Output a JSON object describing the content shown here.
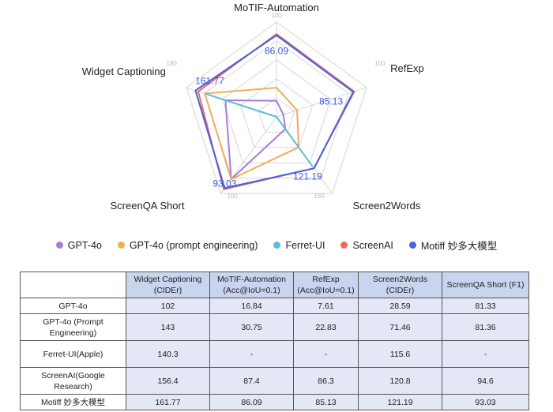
{
  "chart_data": {
    "type": "radar",
    "axes": [
      {
        "label": "MoTIF-Automation",
        "max": 100
      },
      {
        "label": "RefExp",
        "max": 100
      },
      {
        "label": "Screen2Words",
        "max": 180
      },
      {
        "label": "ScreenQA Short",
        "max": 100
      },
      {
        "label": "Widget Captioning",
        "max": 180
      }
    ],
    "series": [
      {
        "name": "GPT-4o",
        "color": "#a77bdc",
        "values": [
          16.84,
          7.61,
          28.59,
          81.33,
          102
        ]
      },
      {
        "name": "GPT-4o (prompt engineering)",
        "color": "#f0ad5a",
        "values": [
          30.75,
          22.83,
          71.46,
          81.36,
          143
        ]
      },
      {
        "name": "Ferret-UI",
        "color": "#5bbcd6",
        "values": [
          0,
          0,
          115.6,
          0,
          140.3
        ]
      },
      {
        "name": "ScreenAI",
        "color": "#ec6a5e",
        "values": [
          87.4,
          86.3,
          120.8,
          94.6,
          156.4
        ]
      },
      {
        "name": "Motiff 妙多大模型",
        "color": "#4662e0",
        "values": [
          86.09,
          85.13,
          121.19,
          93.03,
          161.77
        ]
      }
    ],
    "value_labels": [
      "86.09",
      "85.13",
      "121.19",
      "93.03",
      "161.77"
    ],
    "grid_color": "#d6d6d6",
    "legend_position": "bottom"
  },
  "table": {
    "headers": [
      "",
      "Widget Captioning (CIDEr)",
      "MoTIF-Automation (Acc@IoU=0.1)",
      "RefExp (Acc@IoU=0.1)",
      "Screen2Words (CIDEr)",
      "ScreenQA Short (F1)"
    ],
    "rows": [
      {
        "name": "GPT-4o",
        "cells": [
          "102",
          "16.84",
          "7.61",
          "28.59",
          "81.33"
        ]
      },
      {
        "name": "GPT-4o (Prompt Engineering)",
        "cells": [
          "143",
          "30.75",
          "22.83",
          "71.46",
          "81.36"
        ]
      },
      {
        "name": "Ferret-UI(Apple)",
        "cells": [
          "140.3",
          "-",
          "-",
          "115.6",
          "-"
        ]
      },
      {
        "name": "ScreenAI(Google Research)",
        "cells": [
          "156.4",
          "87.4",
          "86.3",
          "120.8",
          "94.6"
        ]
      },
      {
        "name": "Motiff 妙多大模型",
        "cells": [
          "161.77",
          "86.09",
          "85.13",
          "121.19",
          "93.03"
        ]
      }
    ]
  }
}
